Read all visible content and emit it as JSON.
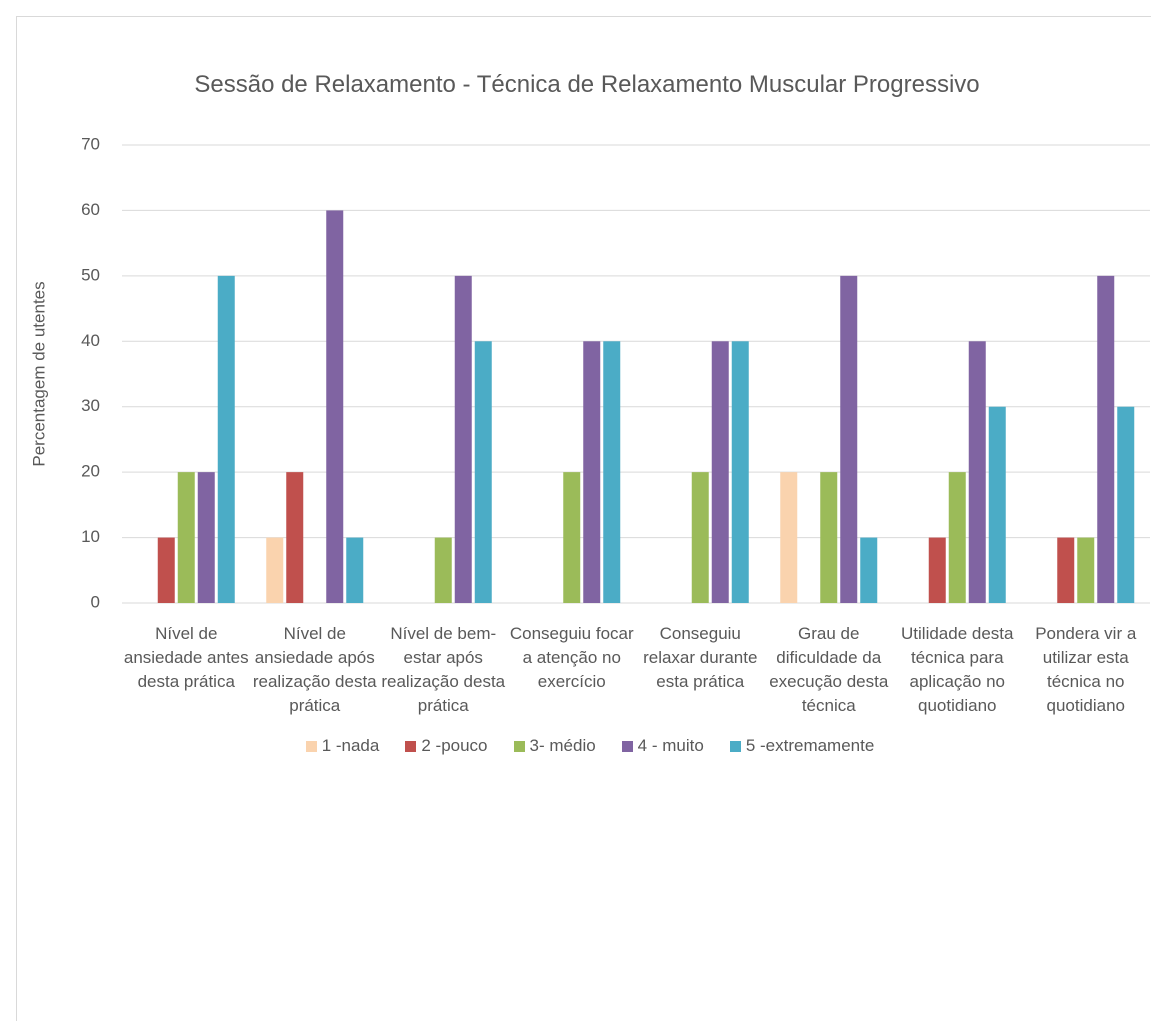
{
  "chart_data": {
    "type": "bar",
    "title": "Sessão de Relaxamento - Técnica de Relaxamento Muscular Progressivo",
    "y_label": "Percentagem de utentes",
    "categories": [
      "Nível de ansiedade antes desta prática",
      "Nível de ansiedade após realização desta prática",
      "Nível de bem-estar após realização desta prática",
      "Conseguiu focar a atenção no exercício",
      "Conseguiu relaxar durante esta prática",
      "Grau de dificuldade da execução desta técnica",
      "Utilidade desta técnica para aplicação no quotidiano",
      "Pondera vir a utilizar esta técnica no quotidiano"
    ],
    "series": [
      {
        "name": "1 -nada",
        "color": "#fad3ae",
        "values": [
          0,
          10,
          0,
          0,
          0,
          20,
          0,
          0
        ]
      },
      {
        "name": "2 -pouco",
        "color": "#c0504d",
        "values": [
          10,
          20,
          0,
          0,
          0,
          0,
          10,
          10
        ]
      },
      {
        "name": "3- médio",
        "color": "#9bbb59",
        "values": [
          20,
          0,
          10,
          20,
          20,
          20,
          20,
          10
        ]
      },
      {
        "name": "4 - muito",
        "color": "#8064a2",
        "values": [
          20,
          60,
          50,
          40,
          40,
          50,
          40,
          50
        ]
      },
      {
        "name": "5 -extremamente",
        "color": "#4bacc6",
        "values": [
          50,
          10,
          40,
          40,
          40,
          10,
          30,
          30
        ]
      }
    ],
    "ylim": [
      0,
      70
    ],
    "yticks": [
      0,
      10,
      20,
      30,
      40,
      50,
      60,
      70
    ],
    "grid": true,
    "legend": "bottom"
  }
}
